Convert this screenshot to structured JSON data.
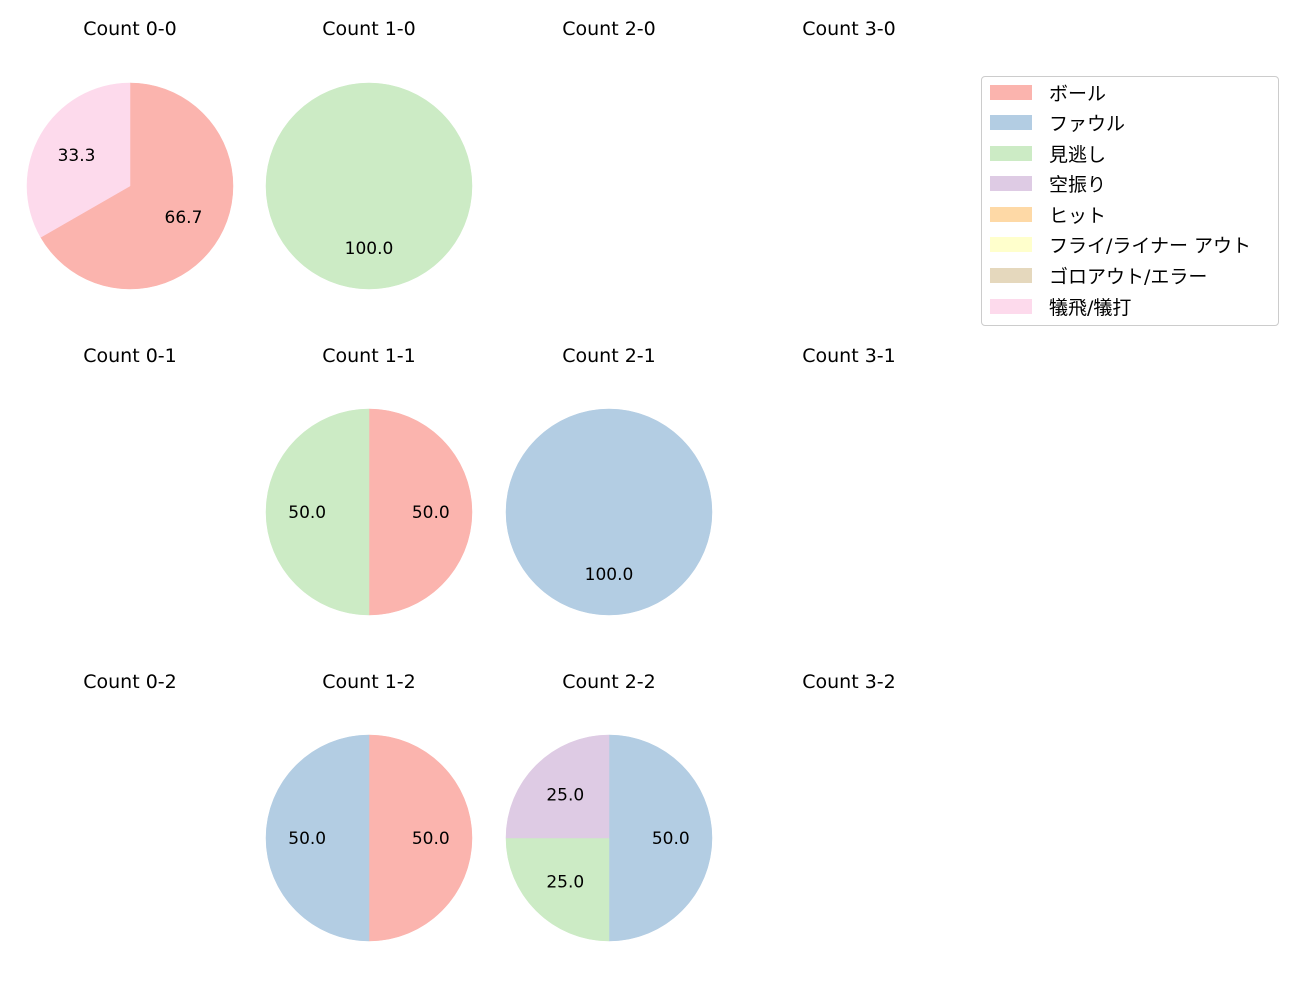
{
  "chart_data": {
    "type": "pie",
    "layout": {
      "rows": 3,
      "cols": 4,
      "start_angle": 90,
      "direction": "clockwise",
      "label_format": "%.1f"
    },
    "categories": [
      "ボール",
      "ファウル",
      "見逃し",
      "空振り",
      "ヒット",
      "フライ/ライナー アウト",
      "ゴロアウト/エラー",
      "犠飛/犠打"
    ],
    "colors": [
      "#fbb4ae",
      "#b3cde3",
      "#ccebc5",
      "#decbe4",
      "#fed9a6",
      "#ffffcc",
      "#e5d8bd",
      "#fddaec"
    ],
    "legend": {
      "position": "upper right"
    },
    "subplots": [
      {
        "title": "Count 0-0",
        "row": 0,
        "col": 0,
        "values": {
          "ボール": 66.7,
          "犠飛/犠打": 33.3
        }
      },
      {
        "title": "Count 1-0",
        "row": 0,
        "col": 1,
        "values": {
          "見逃し": 100.0
        }
      },
      {
        "title": "Count 2-0",
        "row": 0,
        "col": 2,
        "values": {}
      },
      {
        "title": "Count 3-0",
        "row": 0,
        "col": 3,
        "values": {}
      },
      {
        "title": "Count 0-1",
        "row": 1,
        "col": 0,
        "values": {}
      },
      {
        "title": "Count 1-1",
        "row": 1,
        "col": 1,
        "values": {
          "ボール": 50.0,
          "見逃し": 50.0
        }
      },
      {
        "title": "Count 2-1",
        "row": 1,
        "col": 2,
        "values": {
          "ファウル": 100.0
        }
      },
      {
        "title": "Count 3-1",
        "row": 1,
        "col": 3,
        "values": {}
      },
      {
        "title": "Count 0-2",
        "row": 2,
        "col": 0,
        "values": {}
      },
      {
        "title": "Count 1-2",
        "row": 2,
        "col": 1,
        "values": {
          "ボール": 50.0,
          "ファウル": 50.0
        }
      },
      {
        "title": "Count 2-2",
        "row": 2,
        "col": 2,
        "values": {
          "ファウル": 50.0,
          "見逃し": 25.0,
          "空振り": 25.0
        }
      },
      {
        "title": "Count 3-2",
        "row": 2,
        "col": 3,
        "values": {}
      }
    ]
  },
  "legend": {
    "items": [
      {
        "label": "ボール",
        "color": "#fbb4ae"
      },
      {
        "label": "ファウル",
        "color": "#b3cde3"
      },
      {
        "label": "見逃し",
        "color": "#ccebc5"
      },
      {
        "label": "空振り",
        "color": "#decbe4"
      },
      {
        "label": "ヒット",
        "color": "#fed9a6"
      },
      {
        "label": "フライ/ライナー アウト",
        "color": "#ffffcc"
      },
      {
        "label": "ゴロアウト/エラー",
        "color": "#e5d8bd"
      },
      {
        "label": "犠飛/犠打",
        "color": "#fddaec"
      }
    ]
  }
}
